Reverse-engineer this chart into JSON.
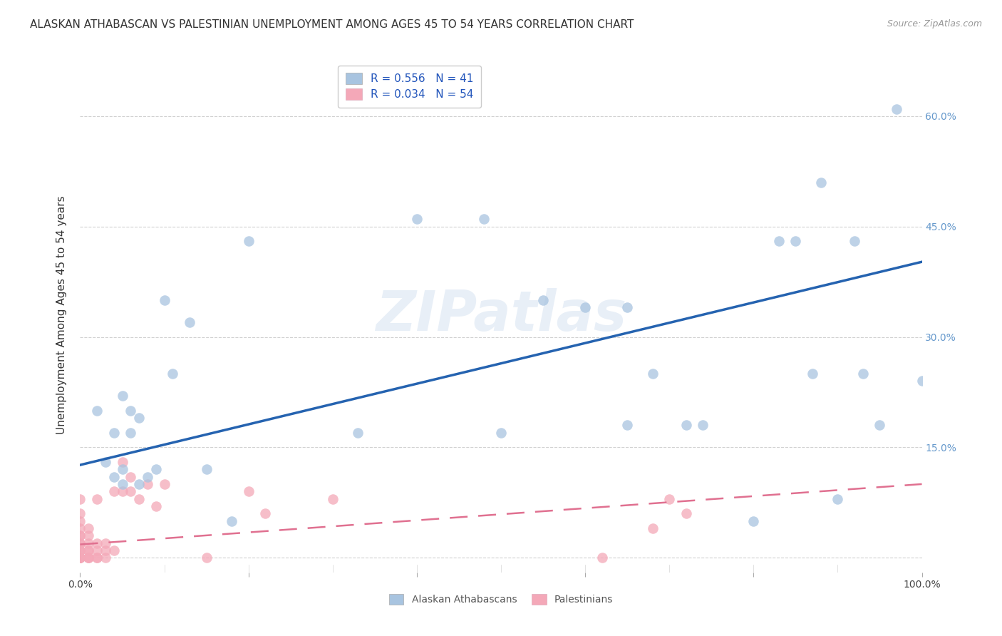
{
  "title": "ALASKAN ATHABASCAN VS PALESTINIAN UNEMPLOYMENT AMONG AGES 45 TO 54 YEARS CORRELATION CHART",
  "source": "Source: ZipAtlas.com",
  "ylabel": "Unemployment Among Ages 45 to 54 years",
  "xlim": [
    0.0,
    1.0
  ],
  "ylim": [
    -0.02,
    0.68
  ],
  "x_ticks": [
    0.0,
    0.2,
    0.4,
    0.6,
    0.8,
    1.0
  ],
  "x_tick_labels": [
    "0.0%",
    "",
    "",
    "",
    "",
    "100.0%"
  ],
  "y_ticks": [
    0.0,
    0.15,
    0.3,
    0.45,
    0.6
  ],
  "y_right_labels": [
    "",
    "15.0%",
    "30.0%",
    "45.0%",
    "60.0%"
  ],
  "watermark": "ZIPatlas",
  "legend_labels": [
    "Alaskan Athabascans",
    "Palestinians"
  ],
  "R_alaska": 0.556,
  "N_alaska": 41,
  "R_palest": 0.034,
  "N_palest": 54,
  "alaska_color": "#a8c4e0",
  "palest_color": "#f4a8b8",
  "alaska_line_color": "#2563b0",
  "palest_line_color": "#e07090",
  "alaska_points_x": [
    0.02,
    0.03,
    0.04,
    0.04,
    0.05,
    0.05,
    0.05,
    0.06,
    0.06,
    0.07,
    0.07,
    0.08,
    0.09,
    0.1,
    0.11,
    0.13,
    0.15,
    0.18,
    0.2,
    0.33,
    0.4,
    0.48,
    0.5,
    0.55,
    0.6,
    0.65,
    0.65,
    0.68,
    0.72,
    0.74,
    0.8,
    0.83,
    0.85,
    0.87,
    0.88,
    0.9,
    0.92,
    0.93,
    0.95,
    0.97,
    1.0
  ],
  "alaska_points_y": [
    0.2,
    0.13,
    0.11,
    0.17,
    0.1,
    0.12,
    0.22,
    0.17,
    0.2,
    0.1,
    0.19,
    0.11,
    0.12,
    0.35,
    0.25,
    0.32,
    0.12,
    0.05,
    0.43,
    0.17,
    0.46,
    0.46,
    0.17,
    0.35,
    0.34,
    0.34,
    0.18,
    0.25,
    0.18,
    0.18,
    0.05,
    0.43,
    0.43,
    0.25,
    0.51,
    0.08,
    0.43,
    0.25,
    0.18,
    0.61,
    0.24
  ],
  "palest_points_x": [
    0.0,
    0.0,
    0.0,
    0.0,
    0.0,
    0.0,
    0.0,
    0.0,
    0.0,
    0.0,
    0.0,
    0.0,
    0.0,
    0.0,
    0.0,
    0.0,
    0.0,
    0.0,
    0.0,
    0.0,
    0.01,
    0.01,
    0.01,
    0.01,
    0.01,
    0.01,
    0.01,
    0.01,
    0.02,
    0.02,
    0.02,
    0.02,
    0.02,
    0.03,
    0.03,
    0.03,
    0.04,
    0.04,
    0.05,
    0.05,
    0.06,
    0.06,
    0.07,
    0.08,
    0.09,
    0.1,
    0.15,
    0.2,
    0.22,
    0.3,
    0.62,
    0.68,
    0.7,
    0.72
  ],
  "palest_points_y": [
    0.0,
    0.0,
    0.0,
    0.0,
    0.0,
    0.0,
    0.0,
    0.0,
    0.0,
    0.01,
    0.01,
    0.01,
    0.02,
    0.02,
    0.03,
    0.03,
    0.04,
    0.05,
    0.06,
    0.08,
    0.0,
    0.0,
    0.0,
    0.01,
    0.01,
    0.02,
    0.03,
    0.04,
    0.0,
    0.0,
    0.01,
    0.02,
    0.08,
    0.0,
    0.01,
    0.02,
    0.01,
    0.09,
    0.09,
    0.13,
    0.11,
    0.09,
    0.08,
    0.1,
    0.07,
    0.1,
    0.0,
    0.09,
    0.06,
    0.08,
    0.0,
    0.04,
    0.08,
    0.06
  ],
  "background_color": "#ffffff",
  "grid_color": "#cccccc",
  "title_fontsize": 11,
  "axis_label_fontsize": 11,
  "tick_fontsize": 10,
  "legend_fontsize": 11,
  "alaska_line_x": [
    0.0,
    1.0
  ],
  "alaska_line_y": [
    0.126,
    0.402
  ],
  "palest_line_x": [
    0.0,
    1.0
  ],
  "palest_line_y": [
    0.018,
    0.1
  ]
}
